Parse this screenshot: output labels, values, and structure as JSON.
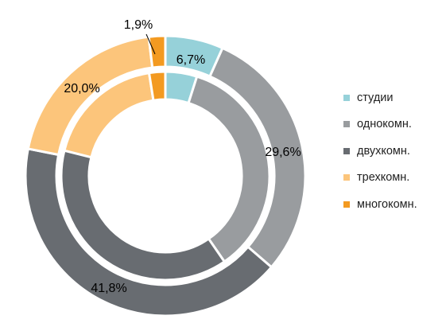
{
  "chart_data": {
    "type": "pie",
    "rings": [
      {
        "ring": "outer",
        "categories": [
          "студии",
          "однокомн.",
          "двухкомн.",
          "трехкомн.",
          "многокомн."
        ],
        "values": [
          6.7,
          29.6,
          41.8,
          20.0,
          1.9
        ]
      },
      {
        "ring": "inner",
        "categories": [
          "студии",
          "однокомн.",
          "двухкомн.",
          "трехкомн.",
          "многокомн."
        ],
        "values": [
          4.9,
          35.5,
          38.5,
          18.6,
          2.5
        ]
      }
    ],
    "data_labels": [
      "6,7%",
      "29,6%",
      "41,8%",
      "20,0%",
      "1,9%"
    ],
    "legend": {
      "position": "right",
      "items": [
        {
          "label": "студии",
          "color": "#96d1d9",
          "data_name": "legend-item-studios",
          "swatch_name": "legend-swatch-studios"
        },
        {
          "label": "однокомн.",
          "color": "#999c9f",
          "data_name": "legend-item-one-room",
          "swatch_name": "legend-swatch-one-room"
        },
        {
          "label": "двухкомн.",
          "color": "#686c71",
          "data_name": "legend-item-two-room",
          "swatch_name": "legend-swatch-two-room"
        },
        {
          "label": "трехкомн.",
          "color": "#fcc57b",
          "data_name": "legend-item-three-room",
          "swatch_name": "legend-swatch-three-room"
        },
        {
          "label": "многокомн.",
          "color": "#f39a21",
          "data_name": "legend-item-multi-room",
          "swatch_name": "legend-swatch-multi-room"
        }
      ]
    }
  }
}
